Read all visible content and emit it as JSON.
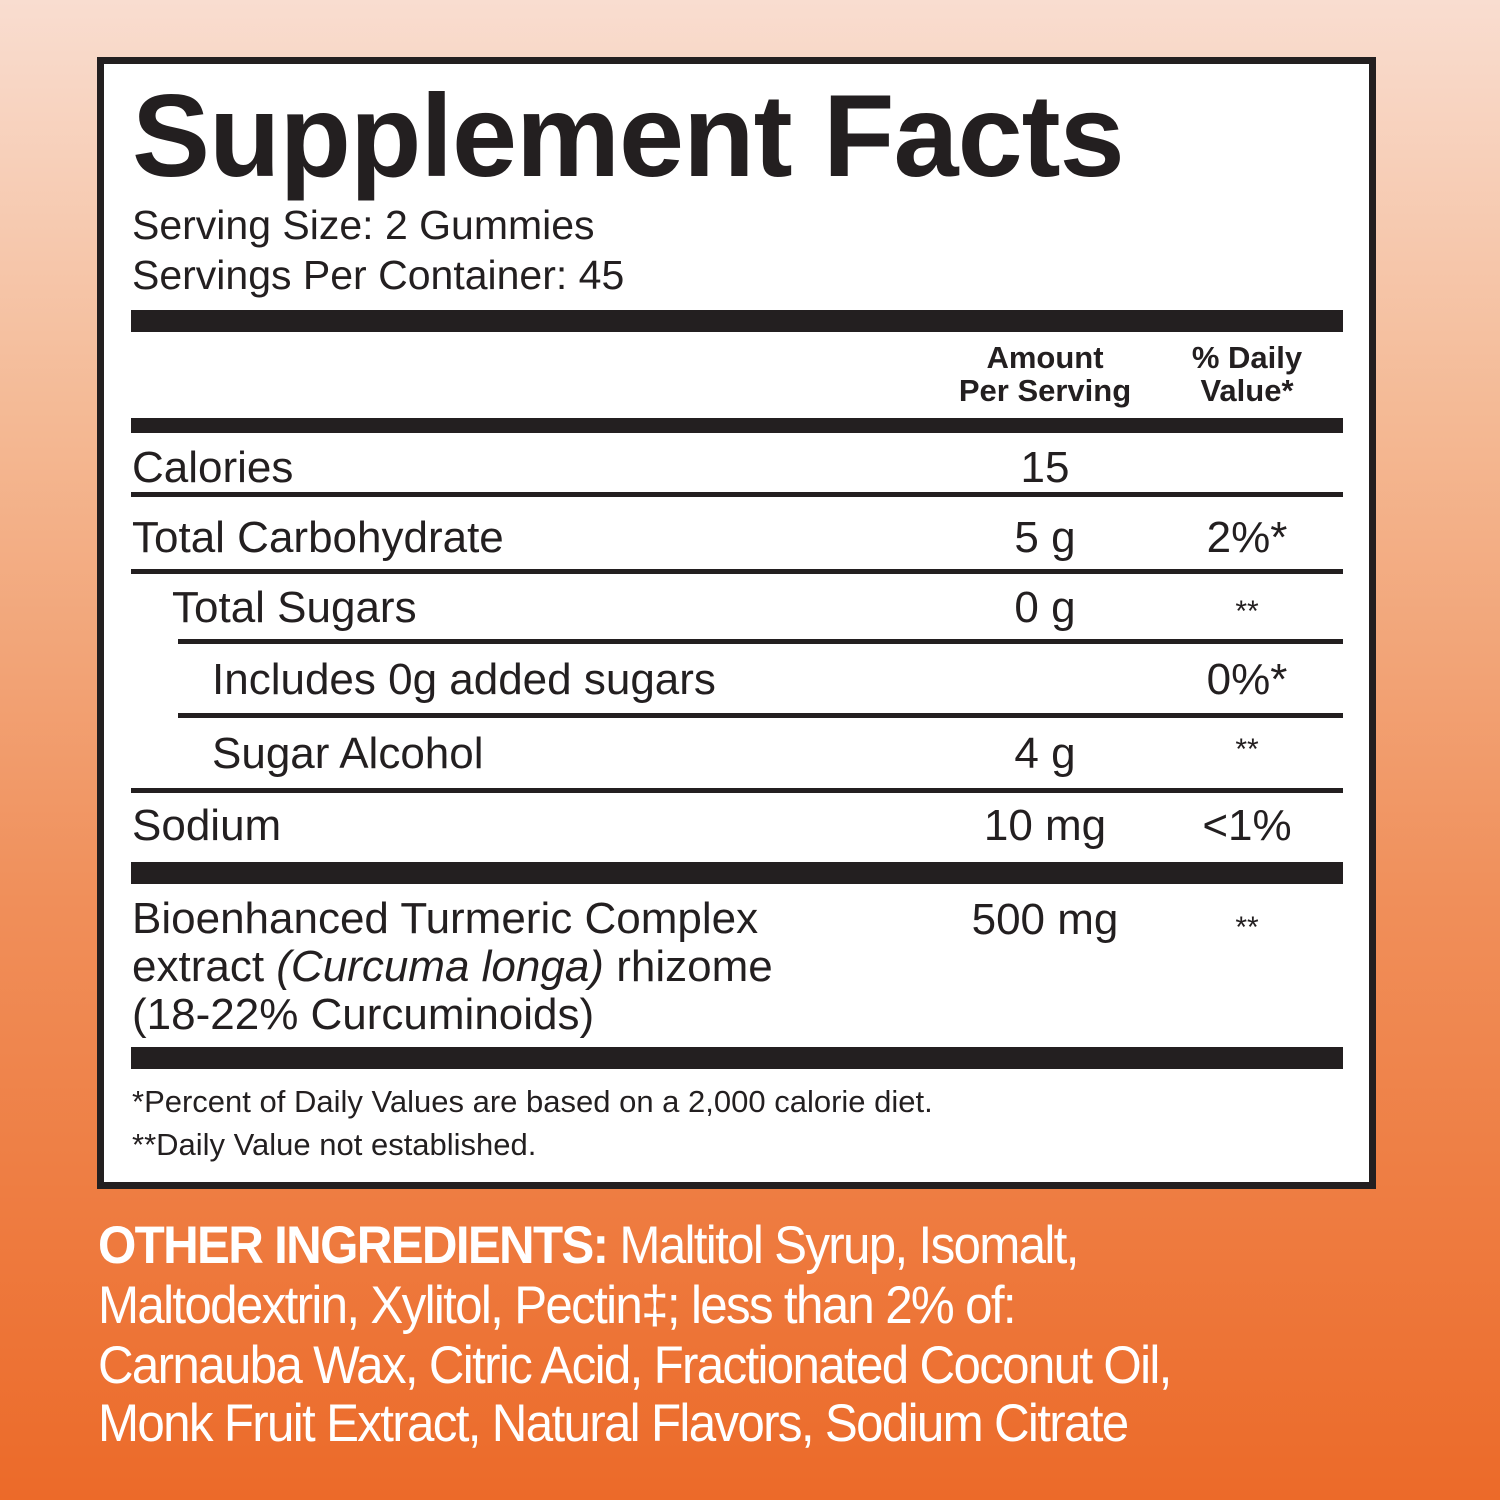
{
  "title": "Supplement Facts",
  "serving_size": "Serving Size: 2 Gummies",
  "servings_per_container": "Servings Per Container: 45",
  "header": {
    "amount_1": "Amount",
    "amount_2": "Per Serving",
    "dv_1": "% Daily",
    "dv_2": "Value*"
  },
  "rows": [
    {
      "label": "Calories",
      "amount": "15",
      "dv": ""
    },
    {
      "label": "Total Carbohydrate",
      "amount": "5 g",
      "dv": "2%*"
    },
    {
      "label": "Total Sugars",
      "amount": "0 g",
      "dv": "**"
    },
    {
      "label": "Includes 0g added sugars",
      "amount": "",
      "dv": "0%*"
    },
    {
      "label": "Sugar Alcohol",
      "amount": "4 g",
      "dv": "**"
    },
    {
      "label": "Sodium",
      "amount": "10 mg",
      "dv": "<1%"
    }
  ],
  "ingredient": {
    "line1": "Bioenhanced Turmeric Complex",
    "line2_pre": "extract ",
    "line2_italic": "(Curcuma longa)",
    "line2_post": " rhizome",
    "line3": "(18-22% Curcuminoids)",
    "amount": "500 mg",
    "dv": "**"
  },
  "footnotes": [
    "*Percent of Daily Values are based on a 2,000 calorie diet.",
    "**Daily Value not established."
  ],
  "other_ingredients": {
    "label": "OTHER INGREDIENTS:",
    "lines": [
      " Maltitol Syrup, Isomalt,",
      "Maltodextrin, Xylitol, Pectin‡; less than 2% of:",
      "Carnauba Wax, Citric Acid, Fractionated Coconut Oil,",
      "Monk Fruit Extract, Natural Flavors, Sodium Citrate"
    ]
  }
}
